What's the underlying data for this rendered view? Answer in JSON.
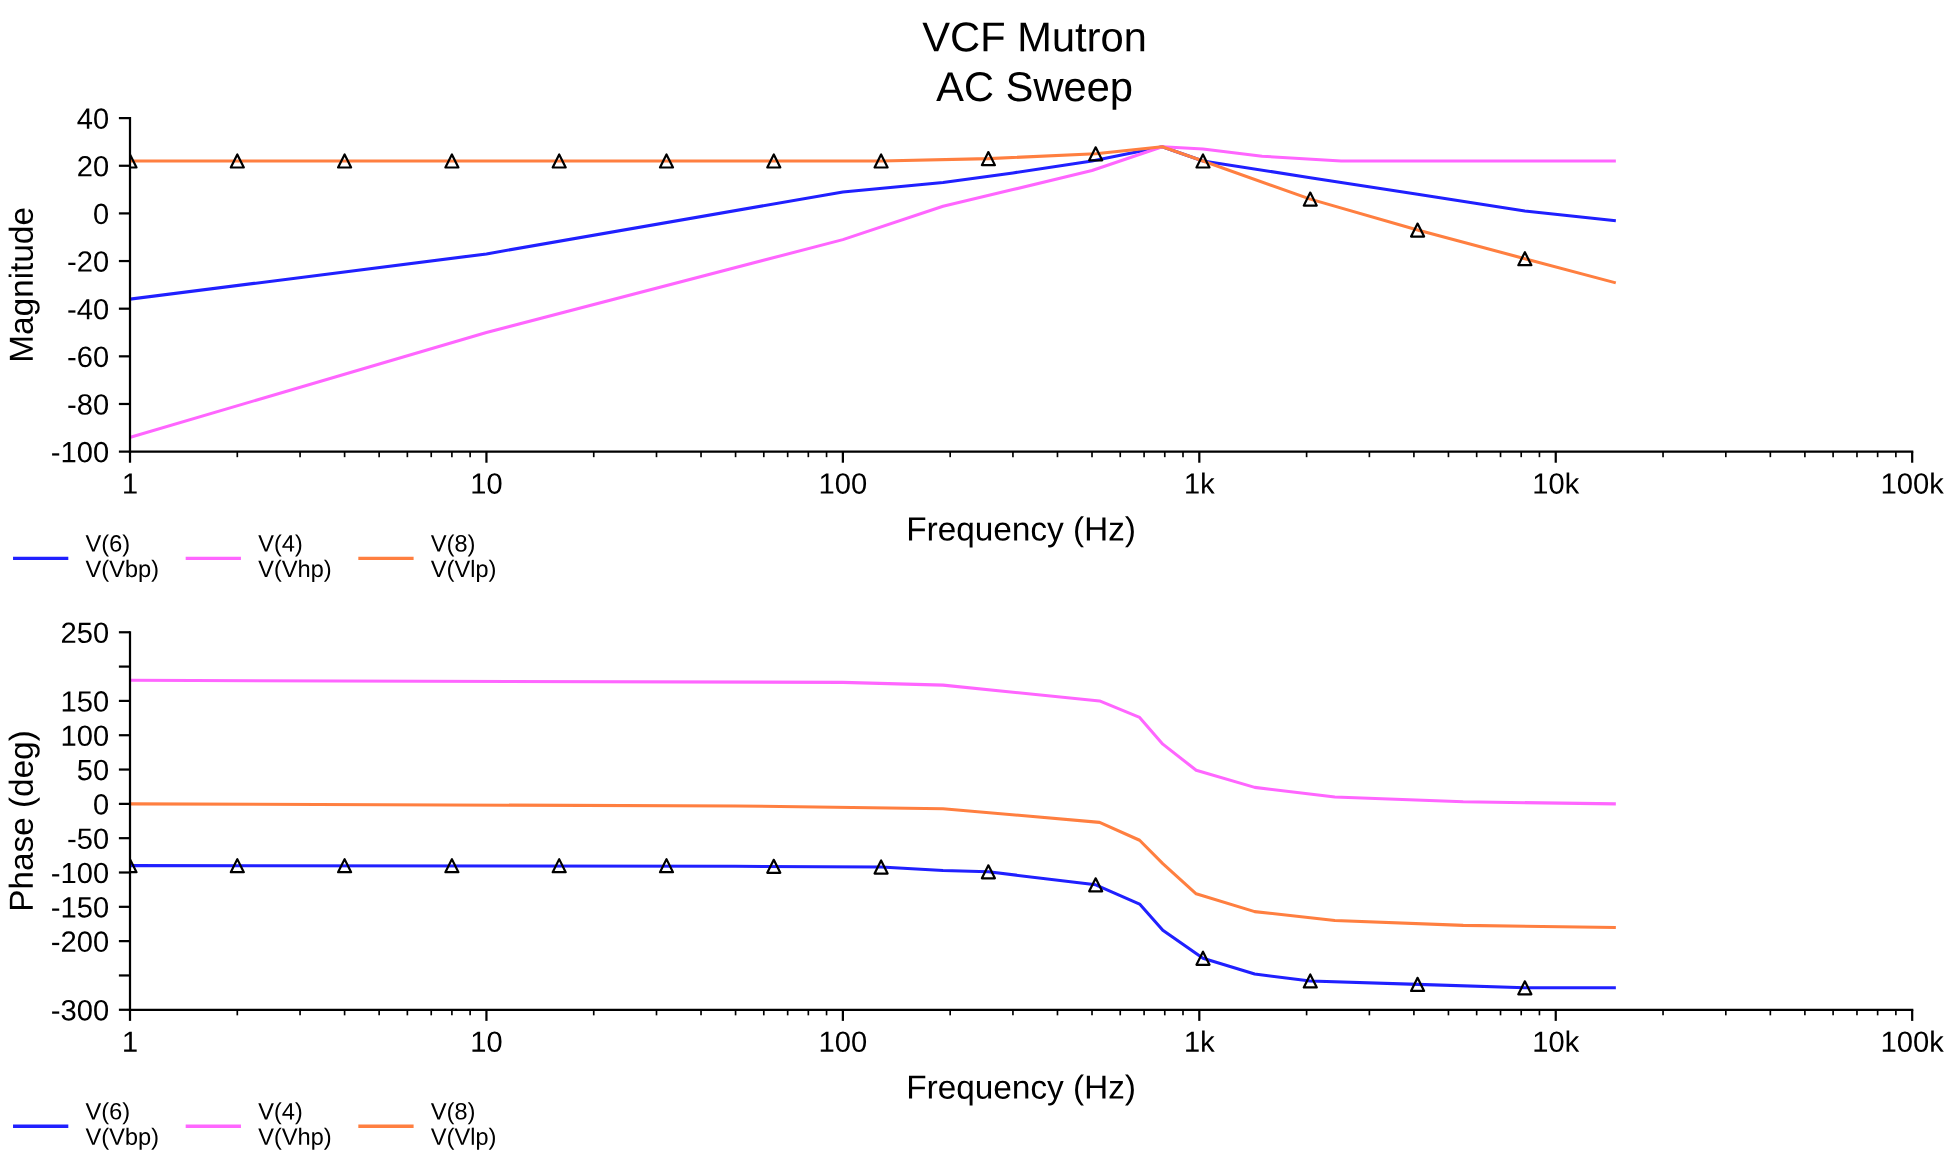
{
  "chart_data": [
    {
      "type": "line",
      "title": "VCF Mutron",
      "subtitle": "AC Sweep",
      "xlabel": "Frequency (Hz)",
      "ylabel": "Magnitude",
      "log": "x",
      "xlim": [
        1,
        100000
      ],
      "xticks": [
        1,
        10,
        100,
        {
          "value": 1000,
          "label": "1k"
        },
        {
          "value": 10000,
          "label": "10k"
        },
        {
          "value": 100000,
          "label": "100k"
        }
      ],
      "ylim": [
        -100,
        40
      ],
      "yticks": [
        40,
        20,
        0,
        -20,
        -40,
        -60,
        -80,
        -100
      ],
      "grid": false,
      "legend": "bottom left",
      "line_style": "solid",
      "series": [
        {
          "name": "V(6)\nV(Vbp)",
          "color": "#2020ff",
          "x": [
            1,
            10,
            100,
            191,
            300,
            500,
            787,
            1024,
            2048,
            4096,
            8192,
            14600
          ],
          "values": [
            -36,
            -17,
            9,
            13,
            17,
            22,
            28,
            22,
            15,
            8,
            1,
            -3
          ]
        },
        {
          "name": "V(4)\nV(Vhp)",
          "color": "#ff66ff",
          "x": [
            1,
            10,
            100,
            191,
            300,
            500,
            787,
            1024,
            1500,
            2500,
            5000,
            14600
          ],
          "values": [
            -94,
            -50,
            -11,
            3,
            10,
            18,
            28,
            27,
            24,
            22,
            22,
            22
          ]
        },
        {
          "name": "V(8)\nV(Vlp)",
          "color": "#ff7f40",
          "x": [
            1,
            128,
            256,
            512,
            787,
            1024,
            2048,
            4096,
            8192,
            14600
          ],
          "values": [
            22,
            22,
            23,
            25,
            28,
            22,
            6,
            -7,
            -19,
            -29
          ]
        },
        {
          "type": "scatter",
          "marker": "triangle",
          "color": "#000000",
          "x": [
            1,
            2,
            4,
            8,
            16,
            32,
            64,
            128,
            256,
            512,
            1024,
            2048,
            4096,
            8192
          ],
          "values": [
            22,
            22,
            22,
            22,
            22,
            22,
            22,
            22,
            23,
            25,
            22,
            6,
            -7,
            -19
          ]
        }
      ]
    },
    {
      "type": "line",
      "xlabel": "Frequency (Hz)",
      "ylabel": "Phase (deg)",
      "log": "x",
      "xlim": [
        1,
        100000
      ],
      "xticks": [
        1,
        10,
        100,
        {
          "value": 1000,
          "label": "1k"
        },
        {
          "value": 10000,
          "label": "10k"
        },
        {
          "value": 100000,
          "label": "100k"
        }
      ],
      "ylim": [
        -300,
        250
      ],
      "yticks": [
        250,
        {
          "value": 200,
          "label": null
        },
        150,
        100,
        50,
        0,
        -50,
        -100,
        -150,
        -200,
        {
          "value": -250,
          "label": null
        },
        -300
      ],
      "grid": false,
      "legend": "bottom left",
      "line_style": "solid",
      "series": [
        {
          "name": "V(6)\nV(Vbp)",
          "color": "#2020ff",
          "x": [
            1,
            50,
            128,
            191,
            256,
            512,
            680,
            790,
            1024,
            1430,
            2048,
            4096,
            8192,
            14600
          ],
          "values": [
            -90,
            -91,
            -92,
            -97,
            -99,
            -118,
            -146,
            -184,
            -225,
            -248,
            -258,
            -263,
            -268,
            -268
          ]
        },
        {
          "name": "V(4)\nV(Vhp)",
          "color": "#ff66ff",
          "x": [
            1,
            100,
            191,
            525,
            680,
            790,
            980,
            1430,
            2400,
            5500,
            14600
          ],
          "values": [
            180,
            177,
            173,
            150,
            126,
            87,
            49,
            24,
            10,
            3,
            0
          ]
        },
        {
          "name": "V(8)\nV(Vlp)",
          "color": "#ff7f40",
          "x": [
            1,
            50,
            191,
            525,
            680,
            790,
            980,
            1430,
            2400,
            5500,
            14600
          ],
          "values": [
            0,
            -3,
            -7,
            -27,
            -53,
            -87,
            -131,
            -157,
            -170,
            -177,
            -180
          ]
        },
        {
          "type": "scatter",
          "marker": "triangle",
          "color": "#000000",
          "x": [
            1,
            2,
            4,
            8,
            16,
            32,
            64,
            128,
            256,
            512,
            1024,
            2048,
            4096,
            8192
          ],
          "values": [
            -90,
            -90,
            -90,
            -90,
            -90,
            -90,
            -91,
            -92,
            -99,
            -118,
            -225,
            -258,
            -263,
            -268
          ]
        }
      ]
    }
  ]
}
